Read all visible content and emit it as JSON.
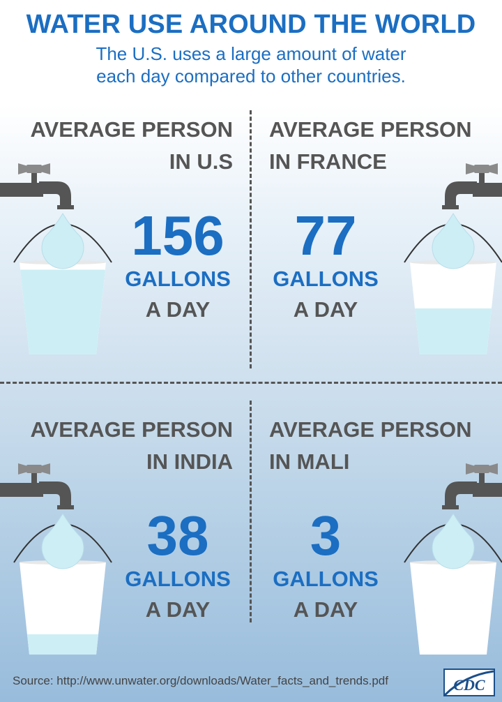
{
  "title": "WATER USE AROUND THE WORLD",
  "subtitle_lines": [
    "The U.S. uses a large amount of water",
    "each day compared to other countries."
  ],
  "panels": [
    {
      "label_line1": "AVERAGE PERSON",
      "label_line2": "IN U.S",
      "value": "156",
      "unit": "GALLONS",
      "period": "A DAY",
      "bucket_fill_fraction": 0.92
    },
    {
      "label_line1": "AVERAGE PERSON",
      "label_line2": "IN FRANCE",
      "value": "77",
      "unit": "GALLONS",
      "period": "A DAY",
      "bucket_fill_fraction": 0.5
    },
    {
      "label_line1": "AVERAGE PERSON",
      "label_line2": "IN INDIA",
      "value": "38",
      "unit": "GALLONS",
      "period": "A DAY",
      "bucket_fill_fraction": 0.22
    },
    {
      "label_line1": "AVERAGE PERSON",
      "label_line2": "IN MALI",
      "value": "3",
      "unit": "GALLONS",
      "period": "A DAY",
      "bucket_fill_fraction": 0.0
    }
  ],
  "source": "Source: http://www.unwater.org/downloads/Water_facts_and_trends.pdf",
  "logo_text": "CDC",
  "colors": {
    "accent": "#1b6ec2",
    "label_gray": "#555555",
    "water": "#cdeef5",
    "faucet": "#555555"
  },
  "icons": [
    "faucet-icon",
    "water-drop-icon",
    "bucket-icon",
    "cdc-logo"
  ]
}
